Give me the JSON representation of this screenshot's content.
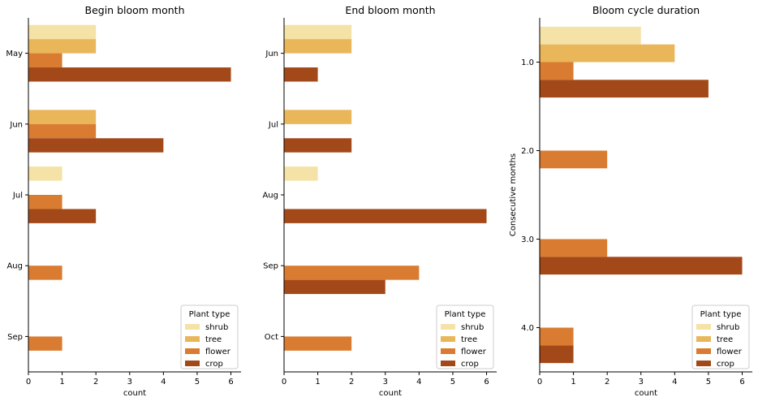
{
  "chart_data": [
    {
      "type": "bar",
      "orientation": "horizontal",
      "title": "Begin bloom month",
      "xlabel": "count",
      "ylabel": "",
      "xlim": [
        0,
        6.3
      ],
      "xticks": [
        "0",
        "1",
        "2",
        "3",
        "4",
        "5",
        "6"
      ],
      "categories": [
        "May",
        "Jun",
        "Jul",
        "Aug",
        "Sep"
      ],
      "series": [
        {
          "name": "shrub",
          "values": [
            2,
            0,
            1,
            0,
            0
          ]
        },
        {
          "name": "tree",
          "values": [
            2,
            2,
            0,
            0,
            0
          ]
        },
        {
          "name": "flower",
          "values": [
            1,
            2,
            1,
            1,
            1
          ]
        },
        {
          "name": "crop",
          "values": [
            6,
            4,
            2,
            0,
            0
          ]
        }
      ],
      "legend": {
        "title": "Plant type",
        "position": "lower-right"
      },
      "grid": false
    },
    {
      "type": "bar",
      "orientation": "horizontal",
      "title": "End bloom month",
      "xlabel": "count",
      "ylabel": "",
      "xlim": [
        0,
        6.3
      ],
      "xticks": [
        "0",
        "1",
        "2",
        "3",
        "4",
        "5",
        "6"
      ],
      "categories": [
        "Jun",
        "Jul",
        "Aug",
        "Sep",
        "Oct"
      ],
      "series": [
        {
          "name": "shrub",
          "values": [
            2,
            0,
            1,
            0,
            0
          ]
        },
        {
          "name": "tree",
          "values": [
            2,
            2,
            0,
            0,
            0
          ]
        },
        {
          "name": "flower",
          "values": [
            0,
            0,
            0,
            4,
            2
          ]
        },
        {
          "name": "crop",
          "values": [
            1,
            2,
            6,
            3,
            0
          ]
        }
      ],
      "legend": {
        "title": "Plant type",
        "position": "lower-right"
      },
      "grid": false
    },
    {
      "type": "bar",
      "orientation": "horizontal",
      "title": "Bloom cycle duration",
      "xlabel": "count",
      "ylabel": "Consecutive months",
      "xlim": [
        0,
        6.3
      ],
      "xticks": [
        "0",
        "1",
        "2",
        "3",
        "4",
        "5",
        "6"
      ],
      "categories": [
        "1.0",
        "2.0",
        "3.0",
        "4.0"
      ],
      "series": [
        {
          "name": "shrub",
          "values": [
            3,
            0,
            0,
            0
          ]
        },
        {
          "name": "tree",
          "values": [
            4,
            0,
            0,
            0
          ]
        },
        {
          "name": "flower",
          "values": [
            1,
            2,
            2,
            1
          ]
        },
        {
          "name": "crop",
          "values": [
            5,
            0,
            6,
            1
          ]
        }
      ],
      "legend": {
        "title": "Plant type",
        "position": "lower-right"
      },
      "grid": false
    }
  ],
  "series_colors": [
    "#f5e2a6",
    "#e9b65a",
    "#d97b30",
    "#a34919"
  ]
}
